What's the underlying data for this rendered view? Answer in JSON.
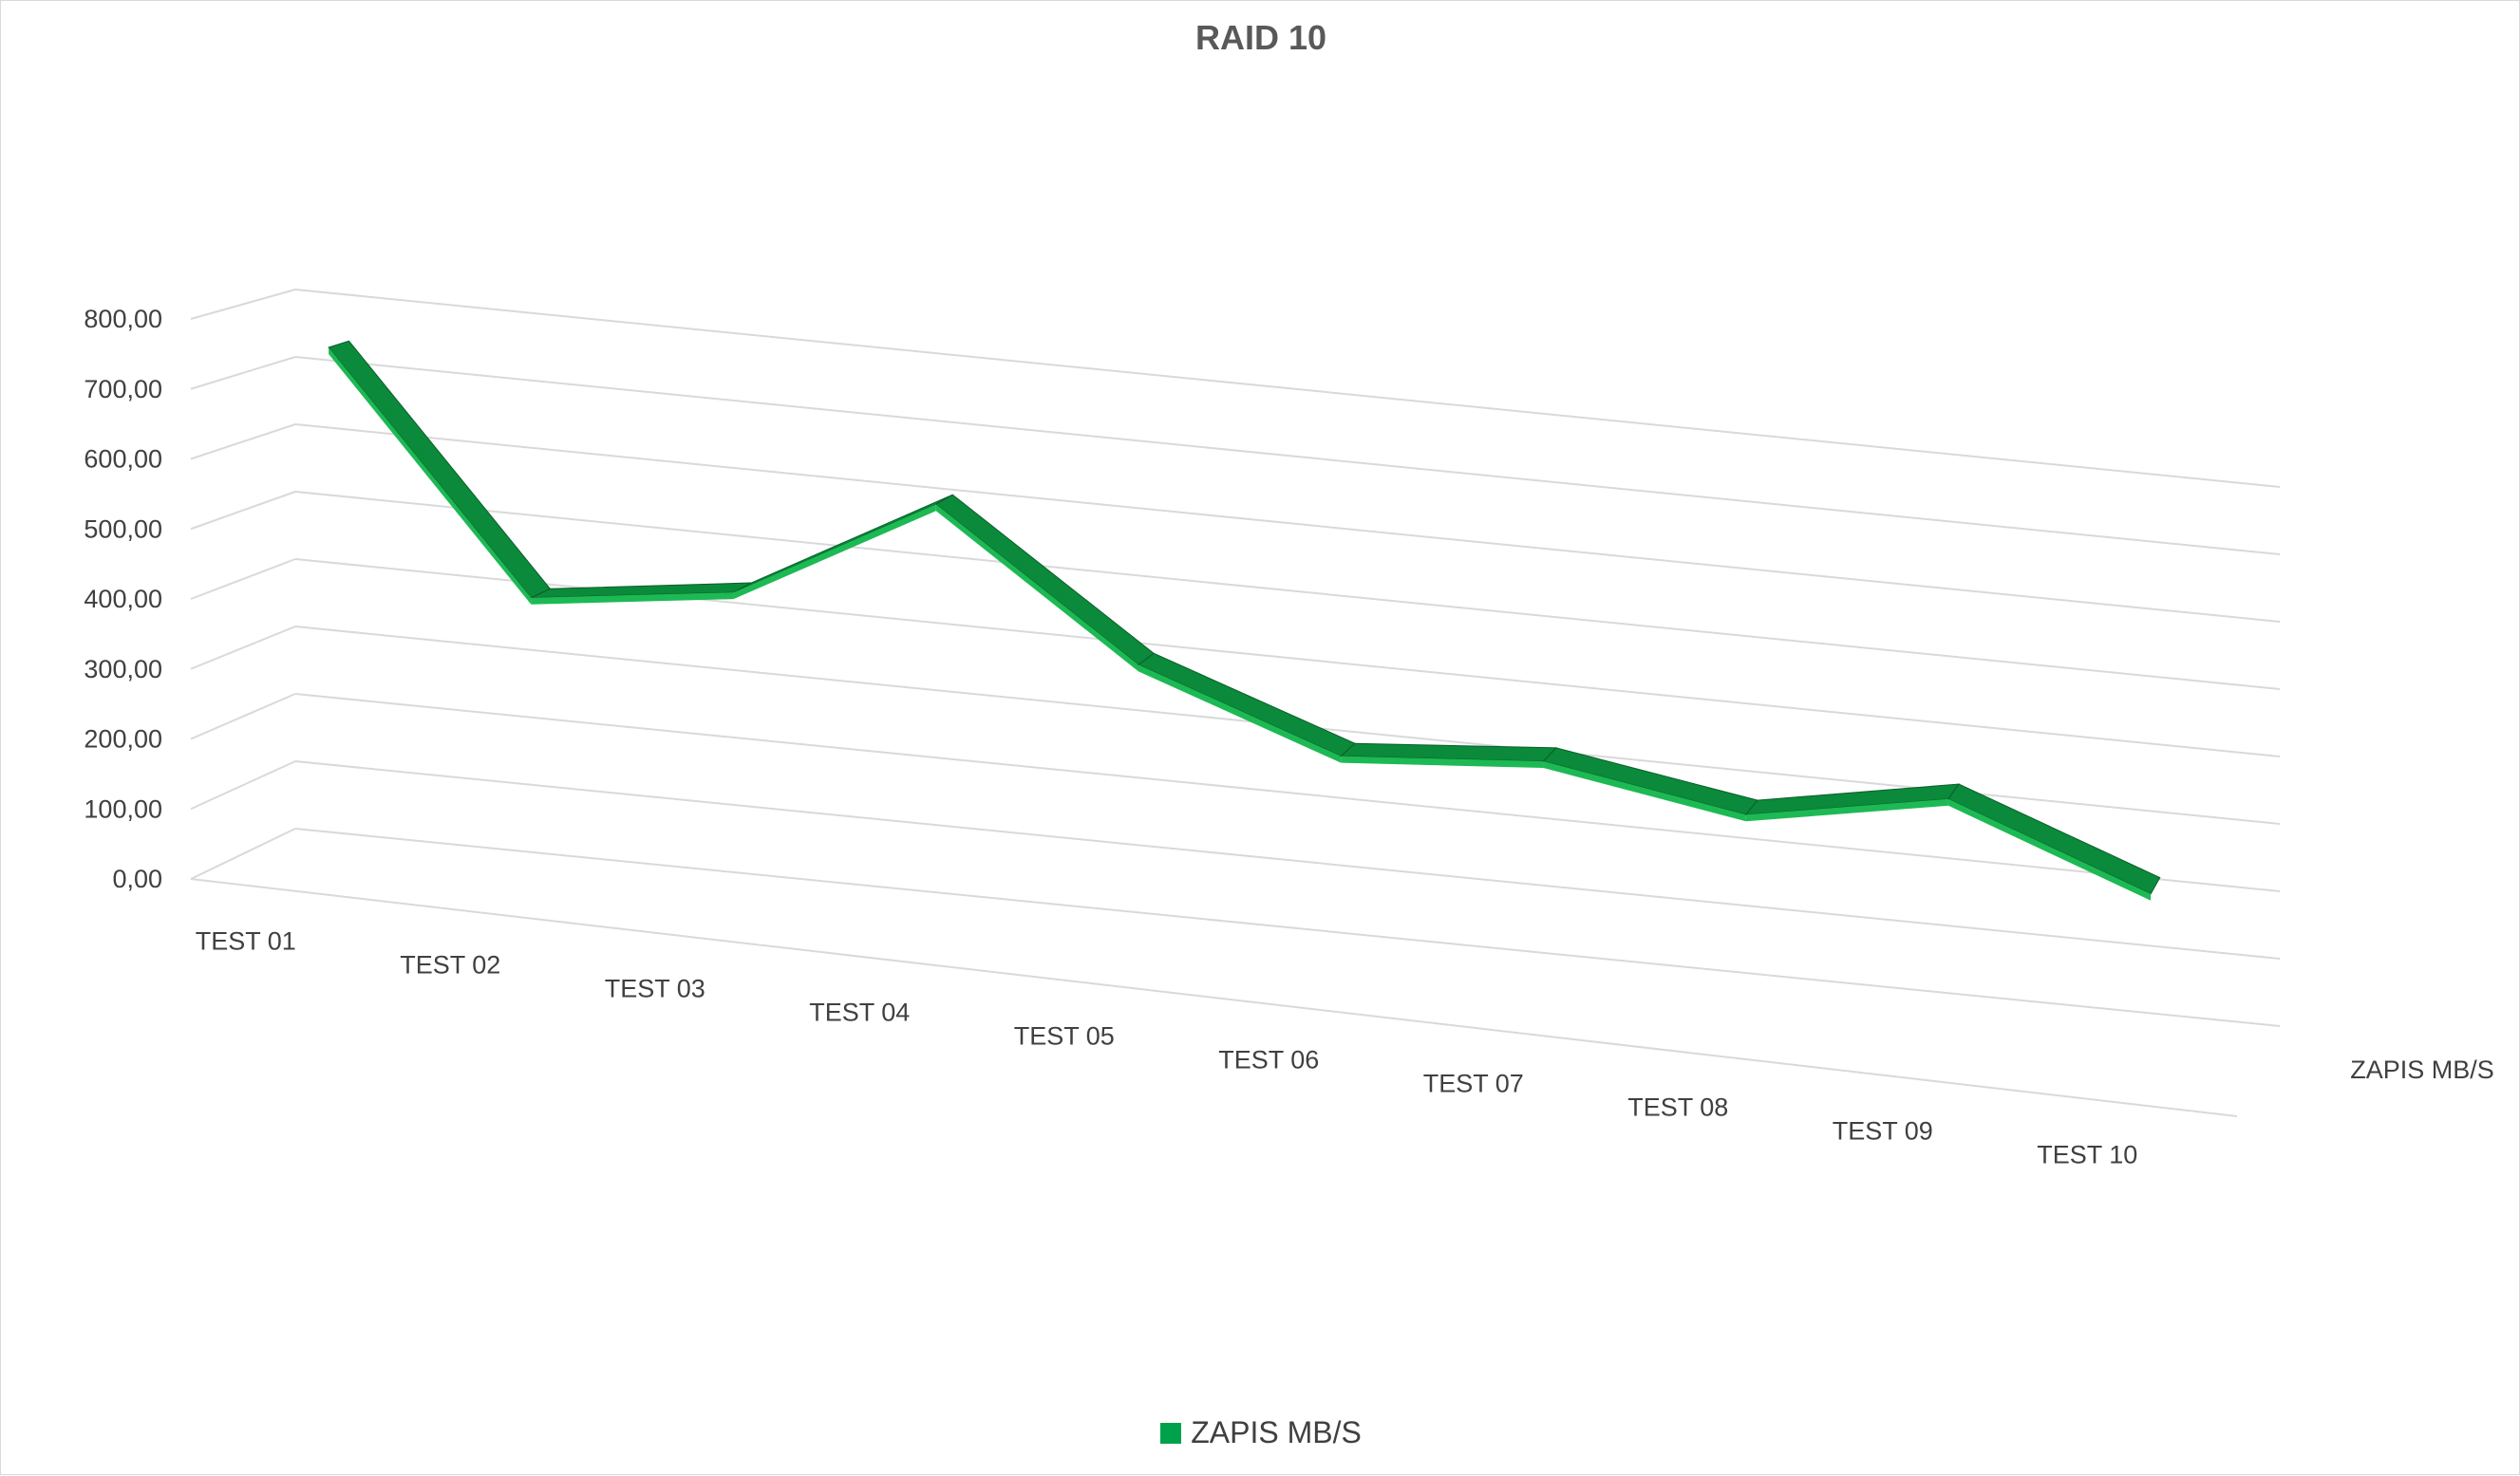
{
  "chart_data": {
    "type": "line",
    "style": "3d-ribbon",
    "title": "RAID 10",
    "categories": [
      "TEST 01",
      "TEST 02",
      "TEST 03",
      "TEST 04",
      "TEST 05",
      "TEST 06",
      "TEST 07",
      "TEST 08",
      "TEST 09",
      "TEST 10"
    ],
    "series": [
      {
        "name": "ZAPIS MB/S",
        "color": "#00A14B",
        "values": [
          760,
          430,
          470,
          630,
          430,
          330,
          355,
          310,
          365,
          260
        ]
      }
    ],
    "depth_axis_label": "ZAPIS MB/S",
    "ylim": [
      0,
      800
    ],
    "yticks": [
      "0,00",
      "100,00",
      "200,00",
      "300,00",
      "400,00",
      "500,00",
      "600,00",
      "700,00",
      "800,00"
    ],
    "grid": true,
    "legend_position": "bottom"
  },
  "colors": {
    "ribbon_top": "#0A8A3A",
    "ribbon_front": "#1DB954",
    "ribbon_edge": "#0B5E2A",
    "grid": "#d9d9d9"
  }
}
